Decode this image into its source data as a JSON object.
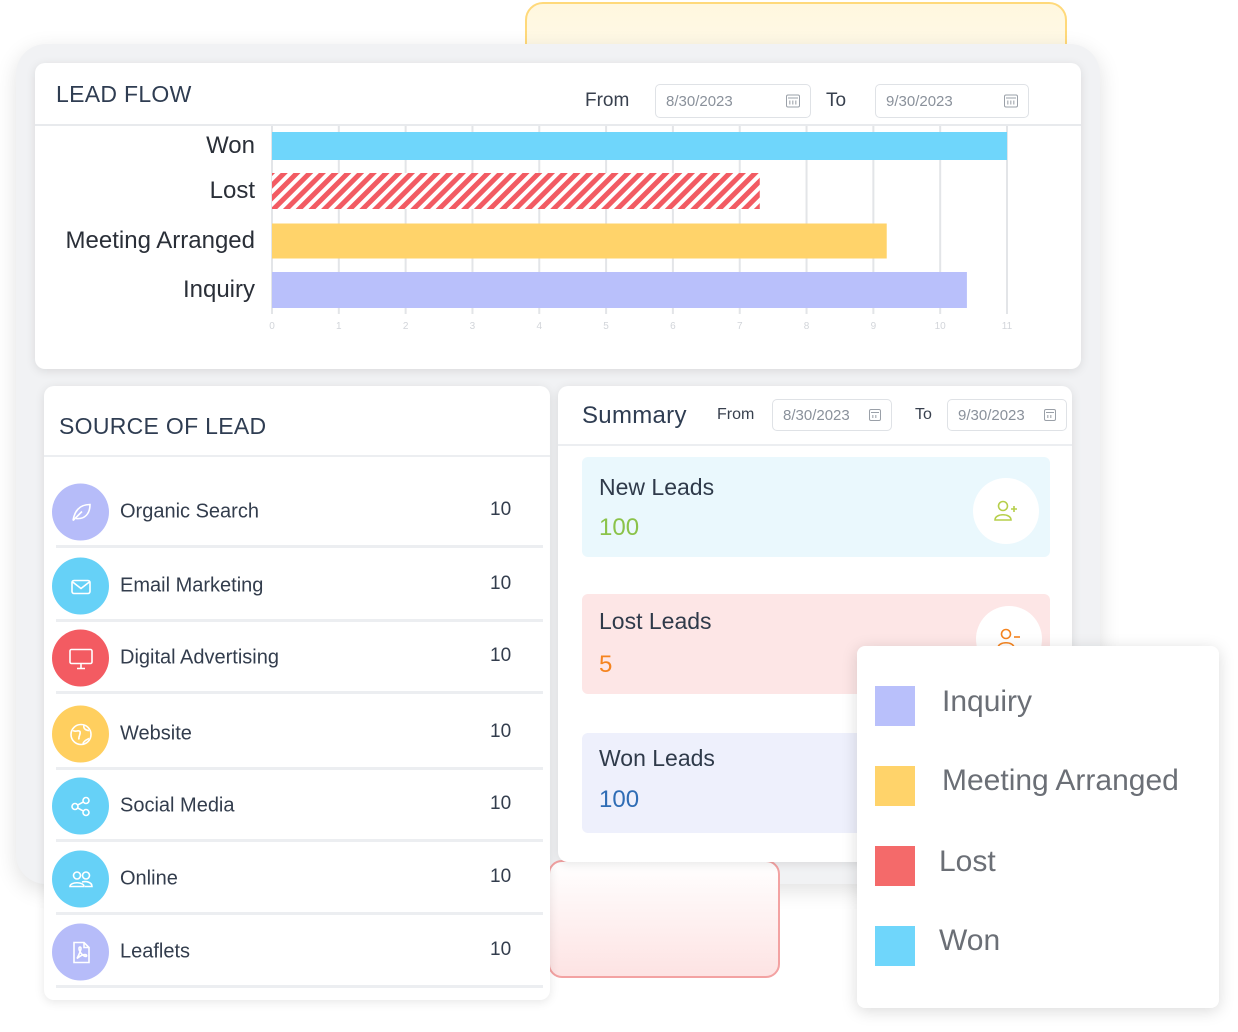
{
  "colors": {
    "won": "#6fd6fb",
    "lost": "#f46a6a",
    "meeting": "#ffd36a",
    "inquiry": "#b9c0fb",
    "new_leads_value": "#8bc34a",
    "lost_leads_value": "#f5841f",
    "won_leads_value": "#2f6db5"
  },
  "lead_flow": {
    "title": "LEAD FLOW",
    "from_label": "From",
    "from_value": "8/30/2023",
    "to_label": "To",
    "to_value": "9/30/2023"
  },
  "chart_data": {
    "type": "bar",
    "orientation": "horizontal",
    "categories": [
      "Won",
      "Lost",
      "Meeting Arranged",
      "Inquiry"
    ],
    "values": [
      11.0,
      7.3,
      9.2,
      10.4
    ],
    "xlim": [
      0,
      11
    ],
    "xticks": [
      "0",
      "1",
      "2",
      "3",
      "4",
      "5",
      "6",
      "7",
      "8",
      "9",
      "10",
      "11"
    ],
    "grid": true
  },
  "source": {
    "title": "SOURCE OF LEAD",
    "items": [
      {
        "label": "Organic Search",
        "value": "10",
        "icon": "leaf-icon",
        "color": "#b6bcf9"
      },
      {
        "label": "Email Marketing",
        "value": "10",
        "icon": "mail-icon",
        "color": "#66d1f7"
      },
      {
        "label": "Digital Advertising",
        "value": "10",
        "icon": "monitor-icon",
        "color": "#f35b62"
      },
      {
        "label": "Website",
        "value": "10",
        "icon": "globe-icon",
        "color": "#ffcf5f"
      },
      {
        "label": "Social Media",
        "value": "10",
        "icon": "share-icon",
        "color": "#66d1f7"
      },
      {
        "label": "Online",
        "value": "10",
        "icon": "users-icon",
        "color": "#66d1f7"
      },
      {
        "label": "Leaflets",
        "value": "10",
        "icon": "pdf-icon",
        "color": "#b6bcf9"
      }
    ]
  },
  "summary": {
    "title": "Summary",
    "from_label": "From",
    "from_value": "8/30/2023",
    "to_label": "To",
    "to_value": "9/30/2023",
    "new_leads": {
      "label": "New Leads",
      "value": "100"
    },
    "lost_leads": {
      "label": "Lost Leads",
      "value": "5"
    },
    "won_leads": {
      "label": "Won Leads",
      "value": "100"
    }
  },
  "legend": {
    "items": [
      {
        "label": "Inquiry",
        "color": "#b9c0fb"
      },
      {
        "label": "Meeting Arranged",
        "color": "#ffd36a"
      },
      {
        "label": "Lost",
        "color": "#f46a6a"
      },
      {
        "label": "Won",
        "color": "#6fd6fb"
      }
    ]
  }
}
